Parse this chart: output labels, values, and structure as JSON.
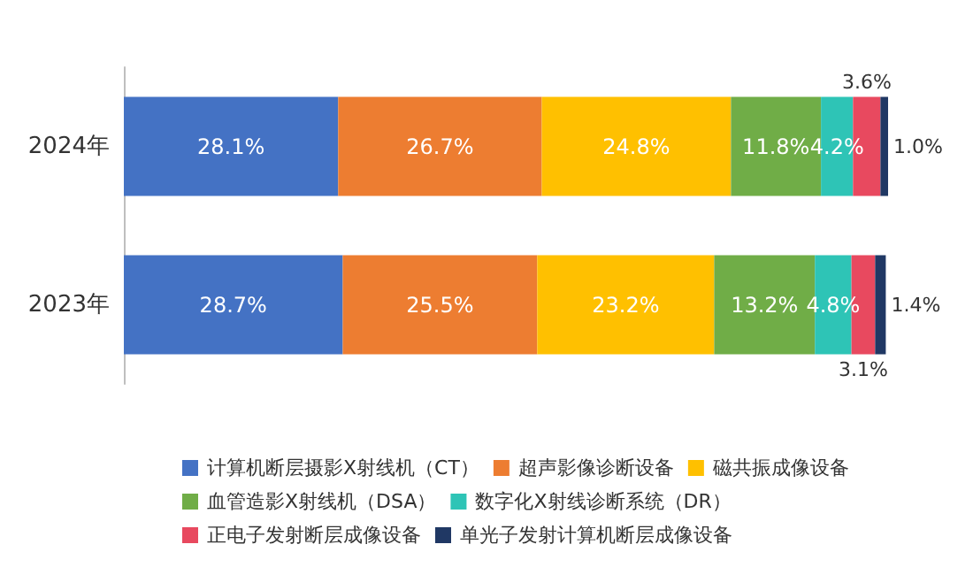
{
  "chart_data": {
    "type": "bar",
    "orientation": "horizontal",
    "stacked": true,
    "categories": [
      "2024年",
      "2023年"
    ],
    "series": [
      {
        "name": "计算机断层摄影X射线机（CT）",
        "color": "#4472c4",
        "values": [
          28.1,
          28.7
        ],
        "value_labels": [
          "28.1%",
          "28.7%"
        ]
      },
      {
        "name": "超声影像诊断设备",
        "color": "#ed7d31",
        "values": [
          26.7,
          25.5
        ],
        "value_labels": [
          "26.7%",
          "25.5%"
        ]
      },
      {
        "name": "磁共振成像设备",
        "color": "#ffc000",
        "values": [
          24.8,
          23.2
        ],
        "value_labels": [
          "24.8%",
          "23.2%"
        ]
      },
      {
        "name": "血管造影X射线机（DSA）",
        "color": "#70ad47",
        "values": [
          11.8,
          13.2
        ],
        "value_labels": [
          "11.8%",
          "13.2%"
        ]
      },
      {
        "name": "数字化X射线诊断系统（DR）",
        "color": "#2ec4b6",
        "values": [
          4.2,
          4.8
        ],
        "value_labels": [
          "4.2%",
          "4.8%"
        ]
      },
      {
        "name": "正电子发射断层成像设备",
        "color": "#e8495f",
        "values": [
          3.6,
          3.1
        ],
        "value_labels": [
          "3.6%",
          "3.1%"
        ]
      },
      {
        "name": "单光子发射计算机断层成像设备",
        "color": "#203864",
        "values": [
          1.0,
          1.4
        ],
        "value_labels": [
          "1.0%",
          "1.4%"
        ]
      }
    ],
    "legend": "bottom",
    "grid": false
  }
}
